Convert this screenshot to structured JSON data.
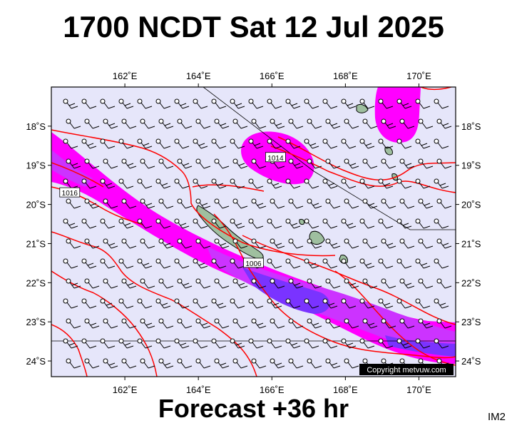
{
  "title": "1700 NCDT Sat 12 Jul 2025",
  "subtitle": "Forecast +36 hr",
  "corner_tag": "IM2",
  "copyright": "Copyright metvuw.com",
  "colors": {
    "background_sea": "#e6e6fa",
    "rain_light": "#ff00ff",
    "rain_medium": "#cc33ff",
    "rain_heavy": "#7a33ff",
    "isobar": "#ff0000",
    "land": "#9fbf9f"
  },
  "map": {
    "lon_range": [
      160.0,
      171.0
    ],
    "lat_range": [
      -24.4,
      -17.0
    ],
    "lon_ticks": [
      {
        "value": 162,
        "label": "162˚E"
      },
      {
        "value": 164,
        "label": "164˚E"
      },
      {
        "value": 166,
        "label": "166˚E"
      },
      {
        "value": 168,
        "label": "168˚E"
      },
      {
        "value": 170,
        "label": "170˚E"
      }
    ],
    "lat_ticks": [
      {
        "value": -18,
        "label": "18˚S"
      },
      {
        "value": -19,
        "label": "19˚S"
      },
      {
        "value": -20,
        "label": "20˚S"
      },
      {
        "value": -21,
        "label": "21˚S"
      },
      {
        "value": -22,
        "label": "22˚S"
      },
      {
        "value": -23,
        "label": "23˚S"
      },
      {
        "value": -24,
        "label": "24˚S"
      }
    ],
    "isobar_labels": [
      {
        "text": "1016",
        "lon": 160.5,
        "lat": -19.7
      },
      {
        "text": "1014",
        "lon": 166.1,
        "lat": -18.8
      },
      {
        "text": "1006",
        "lon": 165.5,
        "lat": -21.5
      }
    ]
  }
}
